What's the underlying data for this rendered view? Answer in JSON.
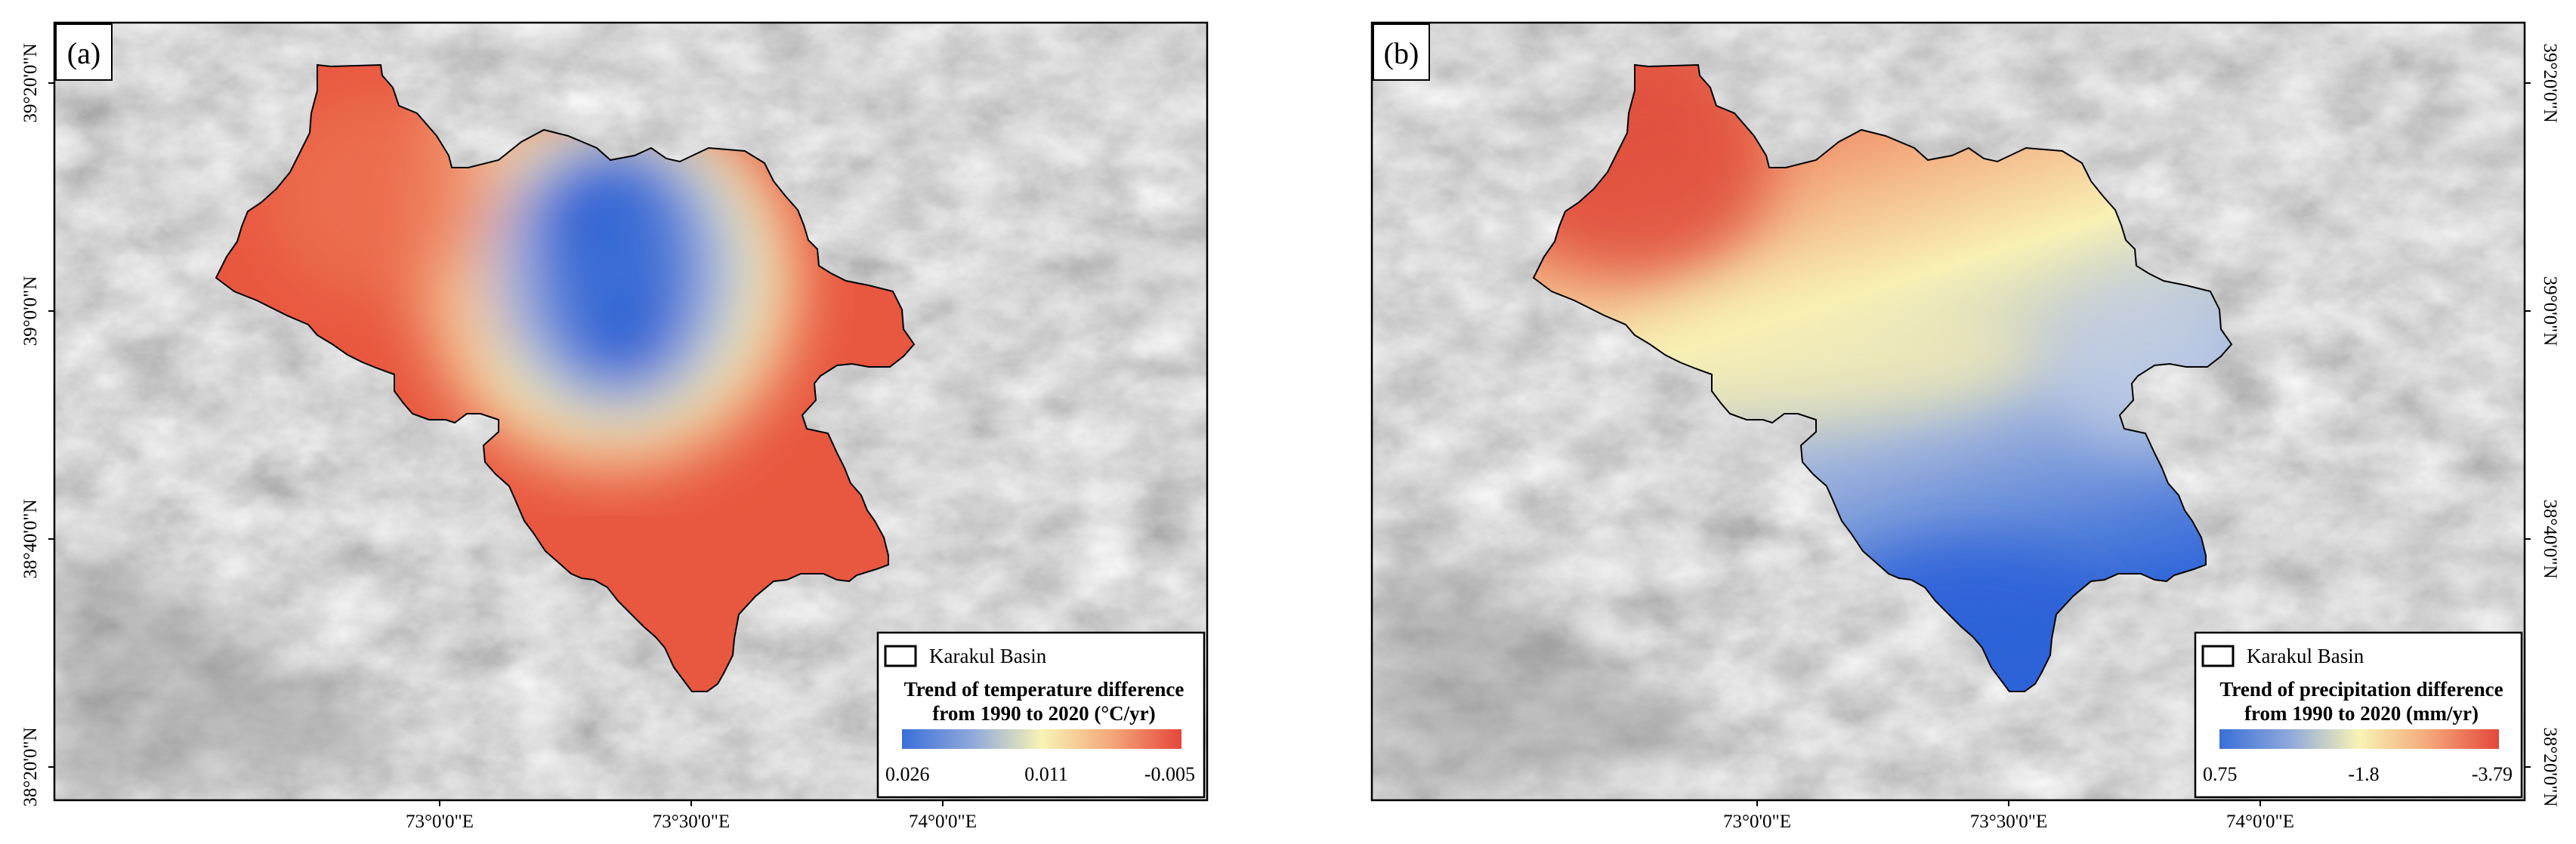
{
  "panels": [
    {
      "tag": "(a)",
      "legend": {
        "item_label": "Karakul Basin",
        "title_line1": "Trend of temperature difference",
        "title_line2": "from 1990 to 2020 (°C/yr)",
        "ticks": [
          "0.026",
          "0.011",
          "-0.005"
        ]
      },
      "x_ticks": [
        "73°0'0\"E",
        "73°30'0\"E",
        "74°0'0\"E"
      ],
      "y_ticks": [
        "39°20'0\"N",
        "39°0'0\"N",
        "38°40'0\"N",
        "38°20'0\"N"
      ],
      "y_axis_side": "left"
    },
    {
      "tag": "(b)",
      "legend": {
        "item_label": "Karakul Basin",
        "title_line1": "Trend of precipitation difference",
        "title_line2": "from 1990 to 2020 (mm/yr)",
        "ticks": [
          "0.75",
          "-1.8",
          "-3.79"
        ]
      },
      "x_ticks": [
        "73°0'0\"E",
        "73°30'0\"E",
        "74°0'0\"E"
      ],
      "y_ticks": [
        "39°20'0\"N",
        "39°0'0\"N",
        "38°40'0\"N",
        "38°20'0\"N"
      ],
      "y_axis_side": "right"
    }
  ],
  "colors": {
    "scale_low": "#3a6fd8",
    "scale_mid": "#f8f3b4",
    "scale_high": "#e4473a",
    "hillshade": "#bdbdbd",
    "basin_outline": "#000000"
  }
}
